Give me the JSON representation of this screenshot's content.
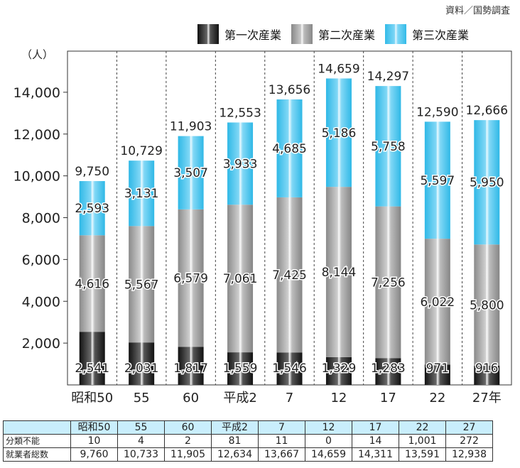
{
  "source": "資料／国勢調査",
  "unit": "（人）",
  "legend": [
    "第一次産業",
    "第二次産業",
    "第三次産業"
  ],
  "chart_data": {
    "type": "bar",
    "stacked": true,
    "categories": [
      "昭和50",
      "55",
      "60",
      "平成2",
      "7",
      "12",
      "17",
      "22",
      "27年"
    ],
    "series": [
      {
        "name": "第一次産業",
        "values": [
          2541,
          2031,
          1817,
          1559,
          1546,
          1329,
          1283,
          971,
          916
        ]
      },
      {
        "name": "第二次産業",
        "values": [
          4616,
          5567,
          6579,
          7061,
          7425,
          8144,
          7256,
          6022,
          5800
        ]
      },
      {
        "name": "第三次産業",
        "values": [
          2593,
          3131,
          3507,
          3933,
          4685,
          5186,
          5758,
          5597,
          5950
        ]
      }
    ],
    "totals": [
      9750,
      10729,
      11903,
      12553,
      13656,
      14659,
      14297,
      12590,
      12666
    ],
    "segment_labels": [
      [
        "2,541",
        "2,031",
        "1,817",
        "1,559",
        "1,546",
        "1,329",
        "1,283",
        "971",
        "916"
      ],
      [
        "4,616",
        "5,567",
        "6,579",
        "7,061",
        "7,425",
        "8,144",
        "7,256",
        "6,022",
        "5,800"
      ],
      [
        "2,593",
        "3,131",
        "3,507",
        "3,933",
        "4,685",
        "5,186",
        "5,758",
        "5,597",
        "5,950"
      ]
    ],
    "total_labels": [
      "9,750",
      "10,729",
      "11,903",
      "12,553",
      "13,656",
      "14,659",
      "14,297",
      "12,590",
      "12,666"
    ],
    "y_ticks": [
      2000,
      4000,
      6000,
      8000,
      10000,
      12000,
      14000
    ],
    "y_tick_labels": [
      "2,000",
      "4,000",
      "6,000",
      "8,000",
      "10,000",
      "12,000",
      "14,000"
    ],
    "ylim": [
      0,
      16000
    ],
    "grid": "vertical dashed"
  },
  "table": {
    "headers": [
      "",
      "昭和50",
      "55",
      "60",
      "平成2",
      "7",
      "12",
      "17",
      "22",
      "27"
    ],
    "rows": [
      {
        "label": "分類不能",
        "values": [
          "10",
          "4",
          "2",
          "81",
          "11",
          "0",
          "14",
          "1,001",
          "272"
        ]
      },
      {
        "label": "就業者総数",
        "values": [
          "9,760",
          "10,733",
          "11,905",
          "12,634",
          "13,667",
          "14,659",
          "14,311",
          "13,591",
          "12,938"
        ]
      }
    ]
  }
}
